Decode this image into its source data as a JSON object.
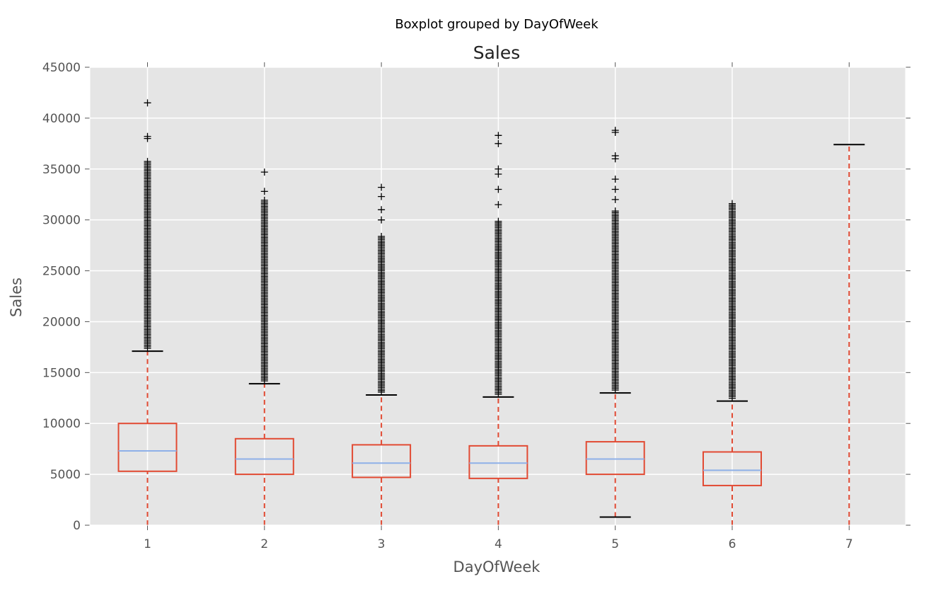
{
  "chart_data": {
    "type": "boxplot",
    "suptitle": "Boxplot grouped by DayOfWeek",
    "title": "Sales",
    "xlabel": "DayOfWeek",
    "ylabel": "Sales",
    "ylim": [
      0,
      45000
    ],
    "yticks": [
      0,
      5000,
      10000,
      15000,
      20000,
      25000,
      30000,
      35000,
      40000,
      45000
    ],
    "grid": true,
    "colors": {
      "plot_background": "#e5e5e5",
      "grid": "#ffffff",
      "box": "#e24a33",
      "median": "#8eb0e8",
      "whisker": "#e24a33",
      "cap": "#000000",
      "flier": "#000000"
    },
    "categories": [
      "1",
      "2",
      "3",
      "4",
      "5",
      "6",
      "7"
    ],
    "boxes": [
      {
        "category": "1",
        "whisker_low": 0,
        "q1": 5300,
        "median": 7300,
        "q3": 10000,
        "whisker_high": 17100,
        "fliers_dense_to": 35800,
        "fliers_sparse": [
          38000,
          38200,
          41500
        ]
      },
      {
        "category": "2",
        "whisker_low": 0,
        "q1": 5000,
        "median": 6500,
        "q3": 8500,
        "whisker_high": 13900,
        "fliers_dense_to": 32000,
        "fliers_sparse": [
          32800,
          34700
        ]
      },
      {
        "category": "3",
        "whisker_low": 0,
        "q1": 4700,
        "median": 6100,
        "q3": 7900,
        "whisker_high": 12800,
        "fliers_dense_to": 28500,
        "fliers_sparse": [
          30000,
          31000,
          32300,
          33200
        ]
      },
      {
        "category": "4",
        "whisker_low": 0,
        "q1": 4600,
        "median": 6100,
        "q3": 7800,
        "whisker_high": 12600,
        "fliers_dense_to": 30000,
        "fliers_sparse": [
          31500,
          33000,
          34500,
          35000,
          37500,
          38300
        ]
      },
      {
        "category": "5",
        "whisker_low": 800,
        "q1": 5000,
        "median": 6500,
        "q3": 8200,
        "whisker_high": 13000,
        "fliers_dense_to": 31000,
        "fliers_sparse": [
          32000,
          33000,
          34000,
          36000,
          36300,
          38600,
          38800
        ]
      },
      {
        "category": "6",
        "whisker_low": 0,
        "q1": 3900,
        "median": 5400,
        "q3": 7200,
        "whisker_high": 12200,
        "fliers_dense_to": 31700,
        "fliers_sparse": []
      },
      {
        "category": "7",
        "whisker_low": 0,
        "q1": null,
        "median": null,
        "q3": null,
        "whisker_high": 37400,
        "fliers_dense_to": null,
        "fliers_sparse": []
      }
    ]
  }
}
